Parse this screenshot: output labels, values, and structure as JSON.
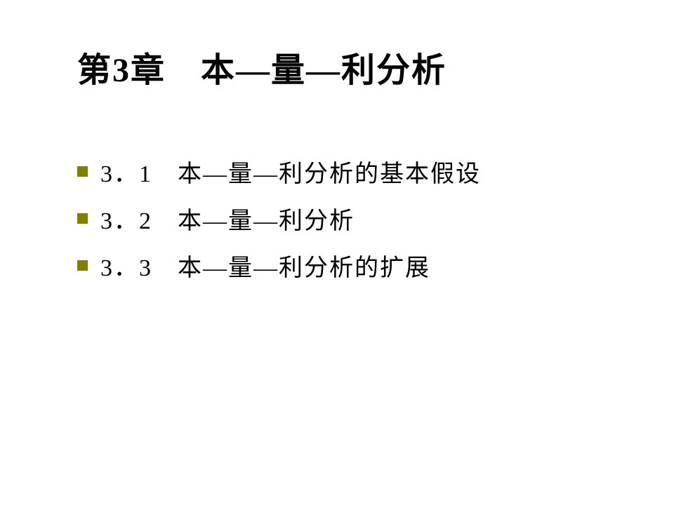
{
  "slide": {
    "title": "第3章　本—量—利分析",
    "title_fontsize": 48,
    "title_color": "#000000",
    "background_color": "#ffffff",
    "bullet_color": "#808000",
    "bullet_size": 15,
    "item_fontsize": 34,
    "item_color": "#000000",
    "items": [
      {
        "number": "3．1",
        "text": "本—量—利分析的基本假设"
      },
      {
        "number": "3．2",
        "text": "本—量—利分析"
      },
      {
        "number": "3．3",
        "text": "本—量—利分析的扩展"
      }
    ]
  }
}
